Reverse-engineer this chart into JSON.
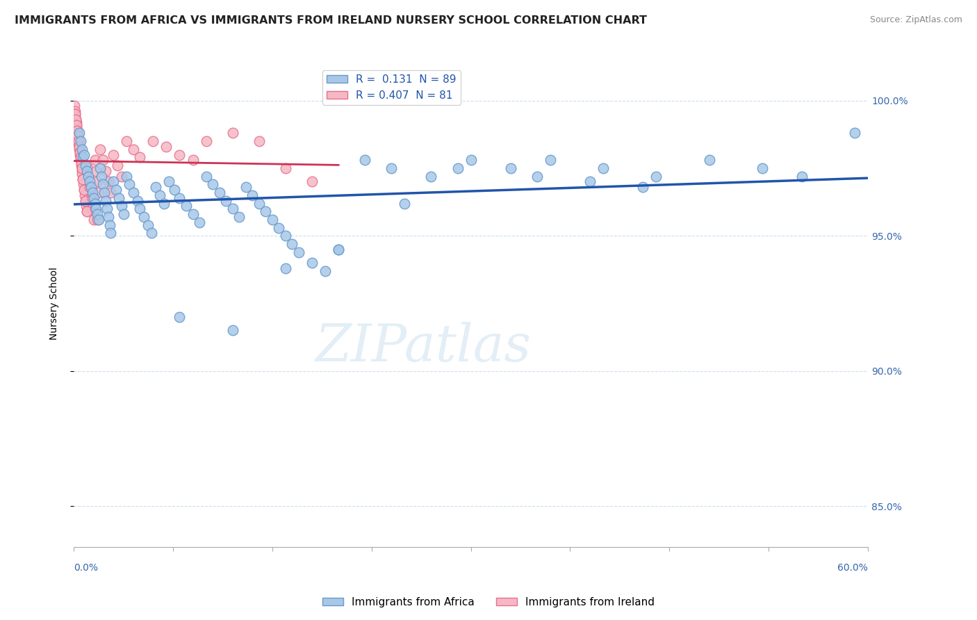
{
  "title": "IMMIGRANTS FROM AFRICA VS IMMIGRANTS FROM IRELAND NURSERY SCHOOL CORRELATION CHART",
  "source": "Source: ZipAtlas.com",
  "ylabel": "Nursery School",
  "xlim": [
    0.0,
    60.0
  ],
  "ylim": [
    83.5,
    101.5
  ],
  "yticks": [
    85.0,
    90.0,
    95.0,
    100.0
  ],
  "africa_color": "#a8c8e8",
  "africa_edge": "#6699cc",
  "ireland_color": "#f5b8c4",
  "ireland_edge": "#e87090",
  "africa_line_color": "#2255aa",
  "ireland_line_color": "#cc3355",
  "watermark": "ZIPatlas",
  "africa_x": [
    0.4,
    0.5,
    0.6,
    0.7,
    0.8,
    0.9,
    1.0,
    1.1,
    1.2,
    1.3,
    1.4,
    1.5,
    1.6,
    1.7,
    1.8,
    1.9,
    2.0,
    2.1,
    2.2,
    2.3,
    2.4,
    2.5,
    2.6,
    2.7,
    2.8,
    3.0,
    3.2,
    3.4,
    3.6,
    3.8,
    4.0,
    4.2,
    4.5,
    4.8,
    5.0,
    5.3,
    5.6,
    5.9,
    6.2,
    6.5,
    6.8,
    7.2,
    7.6,
    8.0,
    8.5,
    9.0,
    9.5,
    10.0,
    10.5,
    11.0,
    11.5,
    12.0,
    12.5,
    13.0,
    13.5,
    14.0,
    14.5,
    15.0,
    15.5,
    16.0,
    16.5,
    17.0,
    18.0,
    19.0,
    20.0,
    22.0,
    24.0,
    27.0,
    30.0,
    33.0,
    36.0,
    40.0,
    44.0,
    48.0,
    52.0,
    55.0,
    59.0,
    8.0,
    12.0,
    16.0,
    20.0,
    25.0,
    29.0,
    35.0,
    39.0,
    43.0
  ],
  "africa_y": [
    98.8,
    98.5,
    98.2,
    97.9,
    98.0,
    97.6,
    97.4,
    97.2,
    97.0,
    96.8,
    96.6,
    96.4,
    96.2,
    96.0,
    95.8,
    95.6,
    97.5,
    97.2,
    96.9,
    96.6,
    96.3,
    96.0,
    95.7,
    95.4,
    95.1,
    97.0,
    96.7,
    96.4,
    96.1,
    95.8,
    97.2,
    96.9,
    96.6,
    96.3,
    96.0,
    95.7,
    95.4,
    95.1,
    96.8,
    96.5,
    96.2,
    97.0,
    96.7,
    96.4,
    96.1,
    95.8,
    95.5,
    97.2,
    96.9,
    96.6,
    96.3,
    96.0,
    95.7,
    96.8,
    96.5,
    96.2,
    95.9,
    95.6,
    95.3,
    95.0,
    94.7,
    94.4,
    94.0,
    93.7,
    94.5,
    97.8,
    97.5,
    97.2,
    97.8,
    97.5,
    97.8,
    97.5,
    97.2,
    97.8,
    97.5,
    97.2,
    98.8,
    92.0,
    91.5,
    93.8,
    94.5,
    96.2,
    97.5,
    97.2,
    97.0,
    96.8
  ],
  "ireland_x": [
    0.05,
    0.08,
    0.1,
    0.12,
    0.15,
    0.18,
    0.2,
    0.22,
    0.25,
    0.28,
    0.3,
    0.33,
    0.35,
    0.38,
    0.4,
    0.43,
    0.45,
    0.48,
    0.5,
    0.53,
    0.55,
    0.58,
    0.6,
    0.63,
    0.65,
    0.7,
    0.75,
    0.8,
    0.85,
    0.9,
    0.95,
    1.0,
    1.05,
    1.1,
    1.2,
    1.3,
    1.4,
    1.5,
    1.6,
    1.7,
    1.8,
    1.9,
    2.0,
    2.2,
    2.4,
    2.6,
    2.8,
    3.0,
    3.3,
    3.6,
    4.0,
    4.5,
    5.0,
    6.0,
    7.0,
    8.0,
    9.0,
    10.0,
    12.0,
    14.0,
    16.0,
    18.0,
    0.1,
    0.15,
    0.2,
    0.25,
    0.3,
    0.35,
    0.4,
    0.45,
    0.5,
    0.55,
    0.6,
    0.7,
    0.8,
    0.9,
    1.0,
    1.2,
    1.4,
    1.6,
    1.8
  ],
  "ireland_y": [
    99.8,
    99.6,
    99.5,
    99.4,
    99.3,
    99.2,
    99.1,
    99.0,
    98.9,
    98.8,
    98.7,
    98.6,
    98.5,
    98.4,
    98.3,
    98.2,
    98.1,
    98.0,
    97.9,
    97.8,
    97.7,
    97.6,
    97.5,
    97.4,
    97.3,
    97.1,
    96.9,
    96.7,
    96.5,
    96.3,
    96.1,
    95.9,
    97.5,
    97.2,
    96.8,
    96.4,
    96.0,
    95.6,
    97.8,
    97.4,
    97.0,
    96.6,
    98.2,
    97.8,
    97.4,
    97.0,
    96.6,
    98.0,
    97.6,
    97.2,
    98.5,
    98.2,
    97.9,
    98.5,
    98.3,
    98.0,
    97.8,
    98.5,
    98.8,
    98.5,
    97.5,
    97.0,
    99.5,
    99.3,
    99.1,
    98.9,
    98.7,
    98.5,
    98.3,
    98.1,
    97.9,
    97.7,
    97.5,
    97.1,
    96.7,
    96.3,
    95.9,
    96.8,
    96.4,
    96.0,
    95.6
  ]
}
